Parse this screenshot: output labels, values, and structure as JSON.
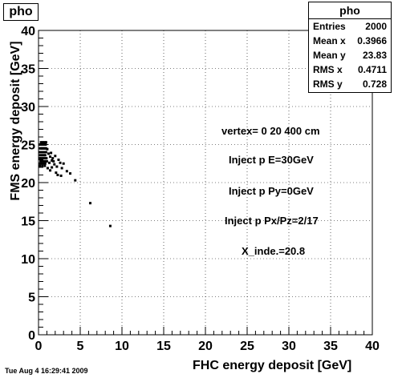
{
  "histogram_title": "pho",
  "stats": {
    "title": "pho",
    "rows": [
      {
        "label": "Entries",
        "value": "2000"
      },
      {
        "label": "Mean x",
        "value": "0.3966"
      },
      {
        "label": "Mean y",
        "value": "23.83"
      },
      {
        "label": "RMS x",
        "value": "0.4711"
      },
      {
        "label": "RMS y",
        "value": "0.728"
      }
    ]
  },
  "annotations": {
    "vertex": "vertex= 0 20 400 cm",
    "inject_e": "Inject p E=30GeV",
    "inject_py": "Inject p Py=0GeV",
    "inject_pxpz": "Inject p Px/Pz=2/17",
    "x_inde": "X_inde.=20.8"
  },
  "timestamp": "Tue Aug  4 16:29:41 2009",
  "chart_data": {
    "type": "scatter",
    "title": "pho",
    "xlabel": "FHC energy deposit [GeV]",
    "ylabel": "FMS energy deposit [GeV]",
    "xlim": [
      0,
      40
    ],
    "ylim": [
      0,
      40
    ],
    "xticks": [
      0,
      5,
      10,
      15,
      20,
      25,
      30,
      35,
      40
    ],
    "yticks": [
      0,
      5,
      10,
      15,
      20,
      25,
      30,
      35,
      40
    ],
    "grid": true,
    "x": [
      0.15,
      0.25,
      0.35,
      0.45,
      0.55,
      0.65,
      0.75,
      0.85,
      0.2,
      0.3,
      0.4,
      0.5,
      0.6,
      0.7,
      0.8,
      0.9,
      0.1,
      0.3,
      0.5,
      0.7,
      0.9,
      0.2,
      0.4,
      0.6,
      0.8,
      0.15,
      0.35,
      0.55,
      0.75,
      0.95,
      0.25,
      0.45,
      0.65,
      0.85,
      1.0,
      0.2,
      0.4,
      0.6,
      0.8,
      0.3,
      0.5,
      0.7,
      0.9,
      0.15,
      0.45,
      0.75,
      1.05,
      1.2,
      1.4,
      1.6,
      1.3,
      1.5,
      1.8,
      1.1,
      1.7,
      2.0,
      1.9,
      2.2,
      2.4,
      1.4,
      2.6,
      2.1,
      1.6,
      2.8,
      3.0,
      2.3,
      3.4,
      2.7,
      3.8,
      4.4,
      6.2,
      8.6
    ],
    "y": [
      25.0,
      25.0,
      25.0,
      25.0,
      25.0,
      25.0,
      25.0,
      25.0,
      24.5,
      24.5,
      24.5,
      24.5,
      24.5,
      24.5,
      24.5,
      24.5,
      24.0,
      24.0,
      24.0,
      24.0,
      24.0,
      23.6,
      23.6,
      23.6,
      23.6,
      23.2,
      23.2,
      23.2,
      23.2,
      23.2,
      22.8,
      22.8,
      22.8,
      22.8,
      22.8,
      22.5,
      22.5,
      22.5,
      22.5,
      25.3,
      25.3,
      25.3,
      25.3,
      22.2,
      22.2,
      22.2,
      24.4,
      23.8,
      23.4,
      22.9,
      22.6,
      23.9,
      22.8,
      21.9,
      23.2,
      23.5,
      22.4,
      22.1,
      23.0,
      21.6,
      22.6,
      21.3,
      22.0,
      21.9,
      22.5,
      21.0,
      21.5,
      20.9,
      21.2,
      20.3,
      17.3,
      14.3
    ]
  }
}
